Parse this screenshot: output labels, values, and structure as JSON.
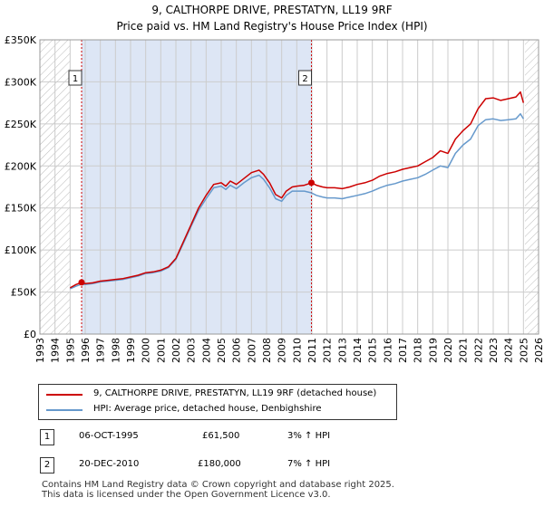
{
  "title": {
    "line1": "9, CALTHORPE DRIVE, PRESTATYN, LL19 9RF",
    "line2": "Price paid vs. HM Land Registry's House Price Index (HPI)"
  },
  "colors": {
    "price": "#cc0000",
    "hpi": "#6699cc",
    "shade": "#dde6f5",
    "grid": "#cccccc"
  },
  "chart_data": {
    "type": "line",
    "title": "Price paid vs. HM Land Registry's House Price Index (HPI)",
    "xlim": [
      1993,
      2026
    ],
    "ylim": [
      0,
      350000
    ],
    "y_ticks": [
      0,
      50000,
      100000,
      150000,
      200000,
      250000,
      300000,
      350000
    ],
    "y_tick_labels": [
      "£0",
      "£50K",
      "£100K",
      "£150K",
      "£200K",
      "£250K",
      "£300K",
      "£350K"
    ],
    "x_ticks": [
      1993,
      1994,
      1995,
      1996,
      1997,
      1998,
      1999,
      2000,
      2001,
      2002,
      2003,
      2004,
      2005,
      2006,
      2007,
      2008,
      2009,
      2010,
      2011,
      2012,
      2013,
      2014,
      2015,
      2016,
      2017,
      2018,
      2019,
      2020,
      2021,
      2022,
      2023,
      2024,
      2025,
      2026
    ],
    "x_tick_labels": [
      "1993",
      "1994",
      "1995",
      "1996",
      "1997",
      "1998",
      "1999",
      "2000",
      "2001",
      "2002",
      "2003",
      "2004",
      "2005",
      "2006",
      "2007",
      "2008",
      "2009",
      "2010",
      "2011",
      "2012",
      "2013",
      "2014",
      "2015",
      "2016",
      "2017",
      "2018",
      "2019",
      "2020",
      "2021",
      "2022",
      "2023",
      "2024",
      "2025",
      "2026"
    ],
    "shaded_range": [
      1995.76,
      2010.97
    ],
    "hatched_ranges": [
      [
        1993,
        1995.0
      ],
      [
        2025.1,
        2026
      ]
    ],
    "series": [
      {
        "name": "9, CALTHORPE DRIVE, PRESTATYN, LL19 9RF (detached house)",
        "x": [
          1995.0,
          1995.4,
          1995.76,
          1996.0,
          1996.5,
          1997.0,
          1997.5,
          1998.0,
          1998.5,
          1999.0,
          1999.5,
          2000.0,
          2000.5,
          2001.0,
          2001.5,
          2002.0,
          2002.5,
          2003.0,
          2003.5,
          2004.0,
          2004.5,
          2005.0,
          2005.3,
          2005.6,
          2006.0,
          2006.5,
          2007.0,
          2007.5,
          2007.8,
          2008.2,
          2008.6,
          2009.0,
          2009.3,
          2009.7,
          2010.0,
          2010.5,
          2010.97,
          2011.3,
          2011.7,
          2012.0,
          2012.5,
          2013.0,
          2013.5,
          2014.0,
          2014.5,
          2015.0,
          2015.5,
          2016.0,
          2016.5,
          2017.0,
          2017.5,
          2018.0,
          2018.5,
          2019.0,
          2019.5,
          2020.0,
          2020.5,
          2021.0,
          2021.5,
          2022.0,
          2022.5,
          2023.0,
          2023.5,
          2024.0,
          2024.5,
          2024.8,
          2025.0
        ],
        "values": [
          55000,
          59000,
          61500,
          60000,
          61000,
          63000,
          64000,
          65000,
          66000,
          68000,
          70000,
          73000,
          74000,
          76000,
          80000,
          90000,
          110000,
          130000,
          150000,
          165000,
          178000,
          180000,
          176000,
          182000,
          178000,
          185000,
          192000,
          195000,
          190000,
          180000,
          166000,
          162000,
          170000,
          175000,
          176000,
          177000,
          180000,
          177000,
          175000,
          174000,
          174000,
          173000,
          175000,
          178000,
          180000,
          183000,
          188000,
          191000,
          193000,
          196000,
          198000,
          200000,
          205000,
          210000,
          218000,
          215000,
          232000,
          242000,
          250000,
          268000,
          280000,
          281000,
          278000,
          280000,
          282000,
          288000,
          275000
        ]
      },
      {
        "name": "HPI: Average price, detached house, Denbighshire",
        "x": [
          1995.0,
          1995.4,
          1995.76,
          1996.0,
          1996.5,
          1997.0,
          1997.5,
          1998.0,
          1998.5,
          1999.0,
          1999.5,
          2000.0,
          2000.5,
          2001.0,
          2001.5,
          2002.0,
          2002.5,
          2003.0,
          2003.5,
          2004.0,
          2004.5,
          2005.0,
          2005.3,
          2005.6,
          2006.0,
          2006.5,
          2007.0,
          2007.5,
          2007.8,
          2008.2,
          2008.6,
          2009.0,
          2009.3,
          2009.7,
          2010.0,
          2010.5,
          2010.97,
          2011.3,
          2011.7,
          2012.0,
          2012.5,
          2013.0,
          2013.5,
          2014.0,
          2014.5,
          2015.0,
          2015.5,
          2016.0,
          2016.5,
          2017.0,
          2017.5,
          2018.0,
          2018.5,
          2019.0,
          2019.5,
          2020.0,
          2020.5,
          2021.0,
          2021.5,
          2022.0,
          2022.5,
          2023.0,
          2023.5,
          2024.0,
          2024.5,
          2024.8,
          2025.0
        ],
        "values": [
          54000,
          57000,
          59500,
          59000,
          60000,
          62000,
          63000,
          64000,
          65000,
          67000,
          69000,
          72000,
          73000,
          75000,
          79000,
          89000,
          108000,
          128000,
          147000,
          161000,
          174000,
          176000,
          172000,
          177000,
          173000,
          180000,
          186000,
          189000,
          184000,
          174000,
          161000,
          158000,
          165000,
          170000,
          170000,
          170000,
          168000,
          165000,
          163000,
          162000,
          162000,
          161000,
          163000,
          165000,
          167000,
          170000,
          174000,
          177000,
          179000,
          182000,
          184000,
          186000,
          190000,
          195000,
          200000,
          198000,
          215000,
          225000,
          232000,
          248000,
          255000,
          256000,
          254000,
          255000,
          256000,
          262000,
          256000
        ]
      }
    ],
    "sales": [
      {
        "label": "1",
        "x": 1995.76,
        "value": 61500
      },
      {
        "label": "2",
        "x": 2010.97,
        "value": 180000
      }
    ]
  },
  "legend": {
    "price_label": "9, CALTHORPE DRIVE, PRESTATYN, LL19 9RF (detached house)",
    "hpi_label": "HPI: Average price, detached house, Denbighshire"
  },
  "transactions": [
    {
      "num": "1",
      "date": "06-OCT-1995",
      "price": "£61,500",
      "hpi": "3% ↑ HPI"
    },
    {
      "num": "2",
      "date": "20-DEC-2010",
      "price": "£180,000",
      "hpi": "7% ↑ HPI"
    }
  ],
  "footer": {
    "line1": "Contains HM Land Registry data © Crown copyright and database right 2025.",
    "line2": "This data is licensed under the Open Government Licence v3.0."
  }
}
